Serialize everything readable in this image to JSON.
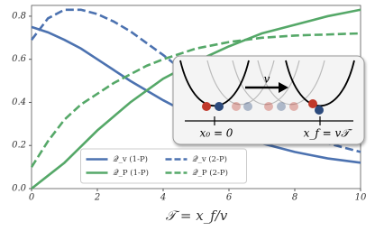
{
  "chart_data": {
    "type": "line",
    "x_label": "𝒯 = x_f/v",
    "x": [
      0,
      0.5,
      1,
      1.5,
      2,
      2.5,
      3,
      3.5,
      4,
      4.5,
      5,
      5.5,
      6,
      6.5,
      7,
      7.5,
      8,
      8.5,
      9,
      9.5,
      10
    ],
    "series": [
      {
        "name": "𝒬_v (1-P)",
        "color": "#4c72b0",
        "dashed": false,
        "values": [
          0.75,
          0.725,
          0.69,
          0.65,
          0.6,
          0.55,
          0.5,
          0.455,
          0.41,
          0.37,
          0.33,
          0.295,
          0.26,
          0.235,
          0.21,
          0.19,
          0.17,
          0.155,
          0.14,
          0.13,
          0.12
        ]
      },
      {
        "name": "𝒬_P (1-P)",
        "color": "#55a868",
        "dashed": false,
        "values": [
          0,
          0.06,
          0.12,
          0.195,
          0.27,
          0.335,
          0.4,
          0.455,
          0.51,
          0.55,
          0.59,
          0.625,
          0.66,
          0.69,
          0.72,
          0.74,
          0.76,
          0.78,
          0.8,
          0.815,
          0.83
        ]
      },
      {
        "name": "𝒬_v (2-P)",
        "color": "#4c72b0",
        "dashed": true,
        "values": [
          0.69,
          0.79,
          0.83,
          0.83,
          0.81,
          0.775,
          0.73,
          0.675,
          0.62,
          0.56,
          0.5,
          0.45,
          0.4,
          0.36,
          0.32,
          0.29,
          0.26,
          0.235,
          0.21,
          0.19,
          0.17
        ]
      },
      {
        "name": "𝒬_P (2-P)",
        "color": "#55a868",
        "dashed": true,
        "values": [
          0.1,
          0.22,
          0.32,
          0.39,
          0.44,
          0.49,
          0.53,
          0.57,
          0.6,
          0.625,
          0.65,
          0.665,
          0.68,
          0.69,
          0.7,
          0.705,
          0.71,
          0.713,
          0.715,
          0.718,
          0.72
        ]
      }
    ],
    "xlim": [
      0,
      10
    ],
    "xticks": [
      0,
      2,
      4,
      6,
      8,
      10
    ],
    "ylim": [
      0,
      0.85
    ],
    "yticks": [
      {
        "value": 0,
        "label": "0.0"
      },
      {
        "value": 0.2,
        "label": "0.2"
      },
      {
        "value": 0.4,
        "label": "0.4"
      },
      {
        "value": 0.6,
        "label": "0.6"
      },
      {
        "value": 0.8,
        "label": "0.8"
      }
    ],
    "legend": "lower center",
    "annotations": [
      "v",
      "x₀ = 0",
      "x_f = v𝒯"
    ]
  }
}
